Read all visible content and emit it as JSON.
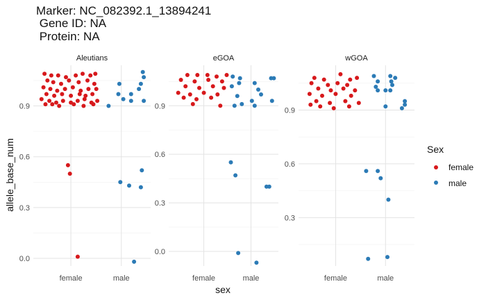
{
  "title": {
    "line1": "Marker: NC_082392.1_13894241",
    "line2": " Gene ID: NA",
    "line3": " Protein: NA"
  },
  "chart_data": {
    "type": "scatter",
    "xlabel": "sex",
    "ylabel": "allele_base_num",
    "categories": [
      "female",
      "male"
    ],
    "legend": {
      "title": "Sex",
      "position": "right",
      "entries": [
        {
          "label": "female",
          "color": "#d7191c"
        },
        {
          "label": "male",
          "color": "#2c7bb6"
        }
      ]
    },
    "grid": true,
    "panels": [
      {
        "strip": "Aleutians",
        "ylim": [
          -0.045,
          1.14
        ],
        "yticks": [
          0.0,
          0.3,
          0.6,
          0.9
        ],
        "ytick_labels": [
          "0.0",
          "0.3",
          "0.6",
          "0.9"
        ],
        "points": {
          "female": [
            {
              "x": -0.27,
              "y": 1.09
            },
            {
              "x": -0.2,
              "y": 1.08
            },
            {
              "x": -0.13,
              "y": 1.08
            },
            {
              "x": -0.05,
              "y": 1.07
            },
            {
              "x": 0.05,
              "y": 1.08
            },
            {
              "x": 0.12,
              "y": 1.09
            },
            {
              "x": 0.2,
              "y": 1.08
            },
            {
              "x": 0.25,
              "y": 1.09
            },
            {
              "x": -0.24,
              "y": 1.05
            },
            {
              "x": -0.18,
              "y": 1.04
            },
            {
              "x": -0.1,
              "y": 1.03
            },
            {
              "x": -0.02,
              "y": 1.05
            },
            {
              "x": 0.08,
              "y": 1.04
            },
            {
              "x": 0.17,
              "y": 1.05
            },
            {
              "x": 0.24,
              "y": 1.03
            },
            {
              "x": -0.28,
              "y": 1.01
            },
            {
              "x": -0.21,
              "y": 1.0
            },
            {
              "x": -0.14,
              "y": 0.99
            },
            {
              "x": -0.06,
              "y": 1.0
            },
            {
              "x": 0.02,
              "y": 1.01
            },
            {
              "x": 0.1,
              "y": 0.99
            },
            {
              "x": 0.18,
              "y": 1.0
            },
            {
              "x": 0.26,
              "y": 1.0
            },
            {
              "x": -0.25,
              "y": 0.97
            },
            {
              "x": -0.17,
              "y": 0.96
            },
            {
              "x": -0.09,
              "y": 0.97
            },
            {
              "x": 0.0,
              "y": 0.96
            },
            {
              "x": 0.09,
              "y": 0.97
            },
            {
              "x": 0.15,
              "y": 0.96
            },
            {
              "x": 0.22,
              "y": 0.97
            },
            {
              "x": -0.3,
              "y": 0.94
            },
            {
              "x": -0.22,
              "y": 0.93
            },
            {
              "x": -0.15,
              "y": 0.92
            },
            {
              "x": -0.08,
              "y": 0.93
            },
            {
              "x": 0.0,
              "y": 0.92
            },
            {
              "x": 0.07,
              "y": 0.93
            },
            {
              "x": 0.14,
              "y": 0.94
            },
            {
              "x": 0.21,
              "y": 0.92
            },
            {
              "x": 0.27,
              "y": 0.93
            },
            {
              "x": -0.26,
              "y": 0.91
            },
            {
              "x": -0.12,
              "y": 0.9
            },
            {
              "x": 0.03,
              "y": 0.91
            },
            {
              "x": 0.13,
              "y": 0.9
            },
            {
              "x": 0.23,
              "y": 0.91
            },
            {
              "x": -0.19,
              "y": 0.91
            },
            {
              "x": -0.03,
              "y": 0.55
            },
            {
              "x": -0.01,
              "y": 0.5
            },
            {
              "x": 0.07,
              "y": 0.01
            }
          ],
          "male": [
            {
              "x": 0.22,
              "y": 1.1
            },
            {
              "x": 0.23,
              "y": 1.07
            },
            {
              "x": -0.02,
              "y": 1.03
            },
            {
              "x": 0.2,
              "y": 1.03
            },
            {
              "x": 0.18,
              "y": 1.0
            },
            {
              "x": -0.03,
              "y": 0.97
            },
            {
              "x": 0.1,
              "y": 0.97
            },
            {
              "x": 0.02,
              "y": 0.94
            },
            {
              "x": 0.1,
              "y": 0.93
            },
            {
              "x": 0.23,
              "y": 0.93
            },
            {
              "x": -0.13,
              "y": 0.9
            },
            {
              "x": -0.01,
              "y": 0.45
            },
            {
              "x": 0.08,
              "y": 0.43
            },
            {
              "x": 0.2,
              "y": 0.42
            },
            {
              "x": 0.21,
              "y": 0.52
            },
            {
              "x": 0.13,
              "y": -0.02
            }
          ]
        }
      },
      {
        "strip": "eGOA",
        "ylim": [
          -0.09,
          1.15
        ],
        "yticks": [
          0.0,
          0.3,
          0.6,
          0.9
        ],
        "ytick_labels": [
          "0.0",
          "0.3",
          "0.6",
          "0.9"
        ],
        "points": {
          "female": [
            {
              "x": -0.18,
              "y": 1.09
            },
            {
              "x": -0.07,
              "y": 1.09
            },
            {
              "x": 0.04,
              "y": 1.09
            },
            {
              "x": 0.14,
              "y": 1.08
            },
            {
              "x": 0.25,
              "y": 1.09
            },
            {
              "x": -0.25,
              "y": 1.06
            },
            {
              "x": -0.1,
              "y": 1.05
            },
            {
              "x": 0.05,
              "y": 1.06
            },
            {
              "x": 0.2,
              "y": 1.05
            },
            {
              "x": -0.2,
              "y": 1.02
            },
            {
              "x": -0.05,
              "y": 1.01
            },
            {
              "x": 0.1,
              "y": 1.02
            },
            {
              "x": 0.22,
              "y": 1.01
            },
            {
              "x": -0.28,
              "y": 0.98
            },
            {
              "x": -0.15,
              "y": 0.97
            },
            {
              "x": 0.0,
              "y": 0.98
            },
            {
              "x": 0.15,
              "y": 0.97
            },
            {
              "x": -0.22,
              "y": 0.95
            },
            {
              "x": -0.08,
              "y": 0.94
            },
            {
              "x": 0.08,
              "y": 0.95
            },
            {
              "x": -0.12,
              "y": 0.91
            },
            {
              "x": 0.18,
              "y": 0.9
            }
          ],
          "male": [
            {
              "x": -0.2,
              "y": 1.08
            },
            {
              "x": -0.12,
              "y": 1.07
            },
            {
              "x": 0.22,
              "y": 1.07
            },
            {
              "x": 0.25,
              "y": 1.07
            },
            {
              "x": -0.13,
              "y": 1.04
            },
            {
              "x": 0.04,
              "y": 1.04
            },
            {
              "x": -0.21,
              "y": 1.02
            },
            {
              "x": 0.08,
              "y": 1.0
            },
            {
              "x": -0.15,
              "y": 0.96
            },
            {
              "x": 0.11,
              "y": 0.97
            },
            {
              "x": 0.01,
              "y": 0.93
            },
            {
              "x": 0.23,
              "y": 0.93
            },
            {
              "x": -0.1,
              "y": 0.91
            },
            {
              "x": -0.18,
              "y": 0.9
            },
            {
              "x": 0.04,
              "y": 0.9
            },
            {
              "x": -0.22,
              "y": 0.55
            },
            {
              "x": -0.17,
              "y": 0.47
            },
            {
              "x": 0.17,
              "y": 0.4
            },
            {
              "x": 0.2,
              "y": 0.4
            },
            {
              "x": -0.14,
              "y": -0.01
            },
            {
              "x": 0.06,
              "y": -0.07
            }
          ]
        }
      },
      {
        "strip": "wGOA",
        "ylim": [
          0.03,
          1.15
        ],
        "yticks": [
          0.3,
          0.6,
          0.9
        ],
        "ytick_labels": [
          "0.3",
          "0.6",
          "0.9"
        ],
        "points": {
          "female": [
            {
              "x": -0.22,
              "y": 1.08
            },
            {
              "x": -0.12,
              "y": 1.07
            },
            {
              "x": 0.05,
              "y": 1.1
            },
            {
              "x": 0.15,
              "y": 1.07
            },
            {
              "x": 0.22,
              "y": 1.08
            },
            {
              "x": -0.25,
              "y": 1.05
            },
            {
              "x": -0.08,
              "y": 1.04
            },
            {
              "x": 0.02,
              "y": 1.05
            },
            {
              "x": 0.12,
              "y": 1.04
            },
            {
              "x": -0.18,
              "y": 1.02
            },
            {
              "x": -0.05,
              "y": 1.01
            },
            {
              "x": 0.08,
              "y": 1.02
            },
            {
              "x": 0.2,
              "y": 1.01
            },
            {
              "x": -0.27,
              "y": 0.99
            },
            {
              "x": -0.14,
              "y": 0.98
            },
            {
              "x": 0.0,
              "y": 0.99
            },
            {
              "x": 0.16,
              "y": 0.98
            },
            {
              "x": -0.2,
              "y": 0.95
            },
            {
              "x": -0.06,
              "y": 0.94
            },
            {
              "x": 0.1,
              "y": 0.95
            },
            {
              "x": 0.24,
              "y": 0.94
            },
            {
              "x": -0.16,
              "y": 0.92
            },
            {
              "x": -0.02,
              "y": 0.91
            },
            {
              "x": 0.14,
              "y": 0.92
            },
            {
              "x": -0.26,
              "y": 0.93
            }
          ],
          "male": [
            {
              "x": -0.12,
              "y": 1.09
            },
            {
              "x": 0.05,
              "y": 1.09
            },
            {
              "x": 0.1,
              "y": 1.08
            },
            {
              "x": -0.08,
              "y": 1.06
            },
            {
              "x": 0.06,
              "y": 1.06
            },
            {
              "x": -0.1,
              "y": 1.03
            },
            {
              "x": 0.07,
              "y": 1.04
            },
            {
              "x": -0.08,
              "y": 1.01
            },
            {
              "x": 0.0,
              "y": 1.01
            },
            {
              "x": 0.05,
              "y": 1.01
            },
            {
              "x": 0.2,
              "y": 0.95
            },
            {
              "x": 0.2,
              "y": 0.93
            },
            {
              "x": 0.0,
              "y": 0.92
            },
            {
              "x": 0.17,
              "y": 0.91
            },
            {
              "x": -0.2,
              "y": 0.56
            },
            {
              "x": -0.08,
              "y": 0.56
            },
            {
              "x": -0.05,
              "y": 0.52
            },
            {
              "x": 0.03,
              "y": 0.4
            },
            {
              "x": -0.18,
              "y": 0.07
            },
            {
              "x": 0.02,
              "y": 0.08
            }
          ]
        }
      }
    ]
  }
}
